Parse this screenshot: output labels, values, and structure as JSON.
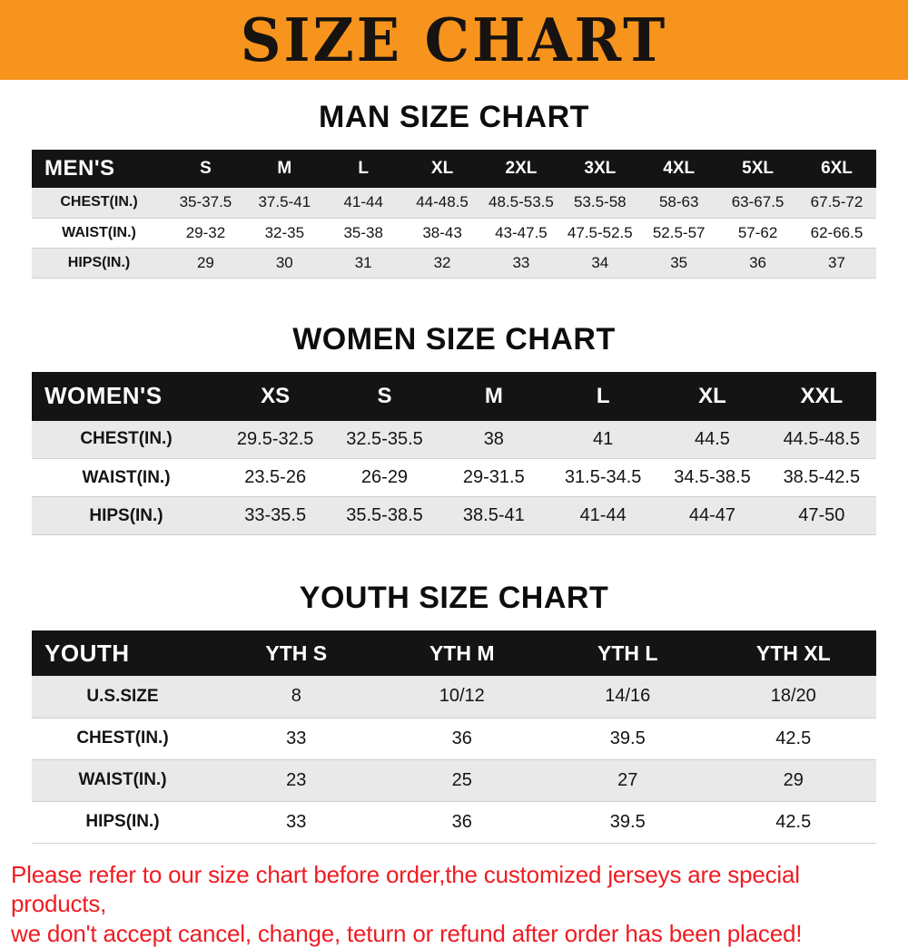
{
  "colors": {
    "banner_bg": "#f7941d",
    "header_bg": "#141414",
    "stripe_bg": "#e9e9e9",
    "footer_red": "#ee1c23"
  },
  "banner": {
    "title": "SIZE CHART"
  },
  "sections": [
    {
      "heading": "MAN SIZE CHART",
      "header_label": "MEN'S",
      "columns": [
        "S",
        "M",
        "L",
        "XL",
        "2XL",
        "3XL",
        "4XL",
        "5XL",
        "6XL"
      ],
      "rows": [
        {
          "label": "CHEST(IN.)",
          "values": [
            "35-37.5",
            "37.5-41",
            "41-44",
            "44-48.5",
            "48.5-53.5",
            "53.5-58",
            "58-63",
            "63-67.5",
            "67.5-72"
          ]
        },
        {
          "label": "WAIST(IN.)",
          "values": [
            "29-32",
            "32-35",
            "35-38",
            "38-43",
            "43-47.5",
            "47.5-52.5",
            "52.5-57",
            "57-62",
            "62-66.5"
          ]
        },
        {
          "label": "HIPS(IN.)",
          "values": [
            "29",
            "30",
            "31",
            "32",
            "33",
            "34",
            "35",
            "36",
            "37"
          ]
        }
      ]
    },
    {
      "heading": "WOMEN SIZE CHART",
      "header_label": "WOMEN'S",
      "columns": [
        "XS",
        "S",
        "M",
        "L",
        "XL",
        "XXL"
      ],
      "rows": [
        {
          "label": "CHEST(IN.)",
          "values": [
            "29.5-32.5",
            "32.5-35.5",
            "38",
            "41",
            "44.5",
            "44.5-48.5"
          ]
        },
        {
          "label": "WAIST(IN.)",
          "values": [
            "23.5-26",
            "26-29",
            "29-31.5",
            "31.5-34.5",
            "34.5-38.5",
            "38.5-42.5"
          ]
        },
        {
          "label": "HIPS(IN.)",
          "values": [
            "33-35.5",
            "35.5-38.5",
            "38.5-41",
            "41-44",
            "44-47",
            "47-50"
          ]
        }
      ]
    },
    {
      "heading": "YOUTH SIZE CHART",
      "header_label": "YOUTH",
      "columns": [
        "YTH S",
        "YTH M",
        "YTH L",
        "YTH XL"
      ],
      "rows": [
        {
          "label": "U.S.SIZE",
          "values": [
            "8",
            "10/12",
            "14/16",
            "18/20"
          ]
        },
        {
          "label": "CHEST(IN.)",
          "values": [
            "33",
            "36",
            "39.5",
            "42.5"
          ]
        },
        {
          "label": "WAIST(IN.)",
          "values": [
            "23",
            "25",
            "27",
            "29"
          ]
        },
        {
          "label": "HIPS(IN.)",
          "values": [
            "33",
            "36",
            "39.5",
            "42.5"
          ]
        }
      ]
    }
  ],
  "footer": {
    "line1": "Please refer to our size chart before order,the customized jerseys are special products,",
    "line2": "we don't accept cancel, change, teturn or refund after order has been placed!"
  }
}
